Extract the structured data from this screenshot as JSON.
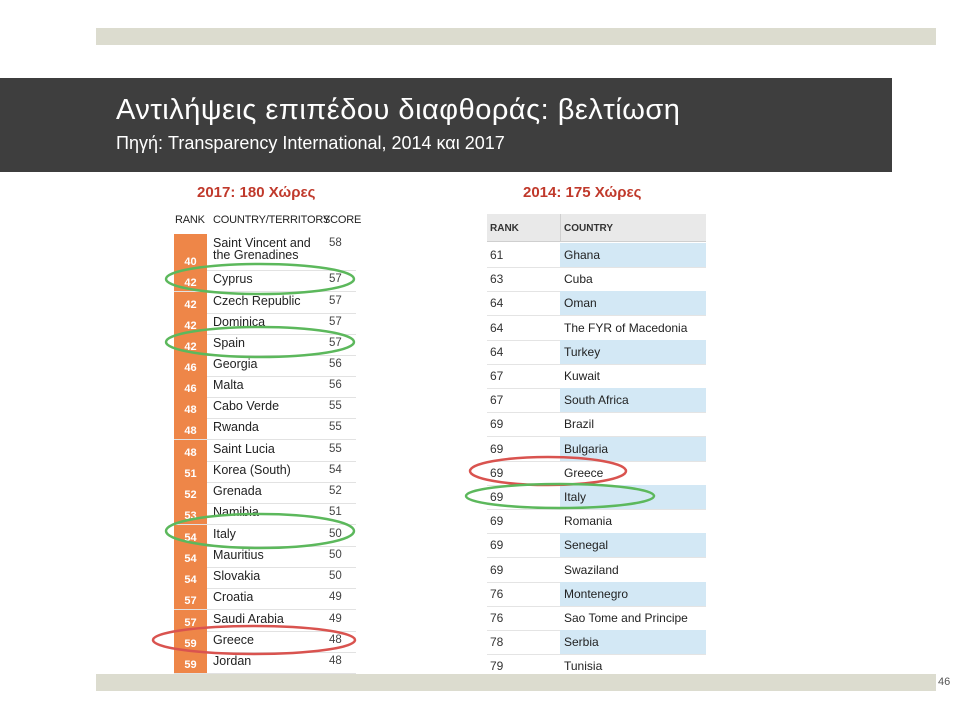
{
  "slide": {
    "title": "Αντιλήψεις επιπέδου διαφθοράς: βελτίωση",
    "subtitle": "Πηγή: Transparency International, 2014 και 2017",
    "page_number": "46"
  },
  "table2017": {
    "heading": "2017: 180 Χώρες",
    "columns": [
      "RANK",
      "COUNTRY/TERRITORY",
      "SCORE"
    ],
    "rows": [
      {
        "rank": "40",
        "country": "Saint Vincent and the Grenadines",
        "score": "58"
      },
      {
        "rank": "42",
        "country": "Cyprus",
        "score": "57"
      },
      {
        "rank": "42",
        "country": "Czech Republic",
        "score": "57"
      },
      {
        "rank": "42",
        "country": "Dominica",
        "score": "57"
      },
      {
        "rank": "42",
        "country": "Spain",
        "score": "57"
      },
      {
        "rank": "46",
        "country": "Georgia",
        "score": "56"
      },
      {
        "rank": "46",
        "country": "Malta",
        "score": "56"
      },
      {
        "rank": "48",
        "country": "Cabo Verde",
        "score": "55"
      },
      {
        "rank": "48",
        "country": "Rwanda",
        "score": "55"
      },
      {
        "rank": "48",
        "country": "Saint Lucia",
        "score": "55"
      },
      {
        "rank": "51",
        "country": "Korea (South)",
        "score": "54"
      },
      {
        "rank": "52",
        "country": "Grenada",
        "score": "52"
      },
      {
        "rank": "53",
        "country": "Namibia",
        "score": "51"
      },
      {
        "rank": "54",
        "country": "Italy",
        "score": "50"
      },
      {
        "rank": "54",
        "country": "Mauritius",
        "score": "50"
      },
      {
        "rank": "54",
        "country": "Slovakia",
        "score": "50"
      },
      {
        "rank": "57",
        "country": "Croatia",
        "score": "49"
      },
      {
        "rank": "57",
        "country": "Saudi Arabia",
        "score": "49"
      },
      {
        "rank": "59",
        "country": "Greece",
        "score": "48"
      },
      {
        "rank": "59",
        "country": "Jordan",
        "score": "48"
      }
    ]
  },
  "table2014": {
    "heading": "2014: 175 Χώρες",
    "columns": [
      "RANK",
      "COUNTRY"
    ],
    "rows": [
      {
        "rank": "61",
        "country": "Ghana"
      },
      {
        "rank": "63",
        "country": "Cuba"
      },
      {
        "rank": "64",
        "country": "Oman"
      },
      {
        "rank": "64",
        "country": "The FYR of Macedonia"
      },
      {
        "rank": "64",
        "country": "Turkey"
      },
      {
        "rank": "67",
        "country": "Kuwait"
      },
      {
        "rank": "67",
        "country": "South Africa"
      },
      {
        "rank": "69",
        "country": "Brazil"
      },
      {
        "rank": "69",
        "country": "Bulgaria"
      },
      {
        "rank": "69",
        "country": "Greece"
      },
      {
        "rank": "69",
        "country": "Italy"
      },
      {
        "rank": "69",
        "country": "Romania"
      },
      {
        "rank": "69",
        "country": "Senegal"
      },
      {
        "rank": "69",
        "country": "Swaziland"
      },
      {
        "rank": "76",
        "country": "Montenegro"
      },
      {
        "rank": "76",
        "country": "Sao Tome and Principe"
      },
      {
        "rank": "78",
        "country": "Serbia"
      },
      {
        "rank": "79",
        "country": "Tunisia"
      }
    ]
  },
  "highlights": {
    "green": [
      "Cyprus",
      "Spain",
      "Italy"
    ],
    "red": [
      "Greece"
    ],
    "green_color": "#5cb85c",
    "red_color": "#d9534f"
  }
}
